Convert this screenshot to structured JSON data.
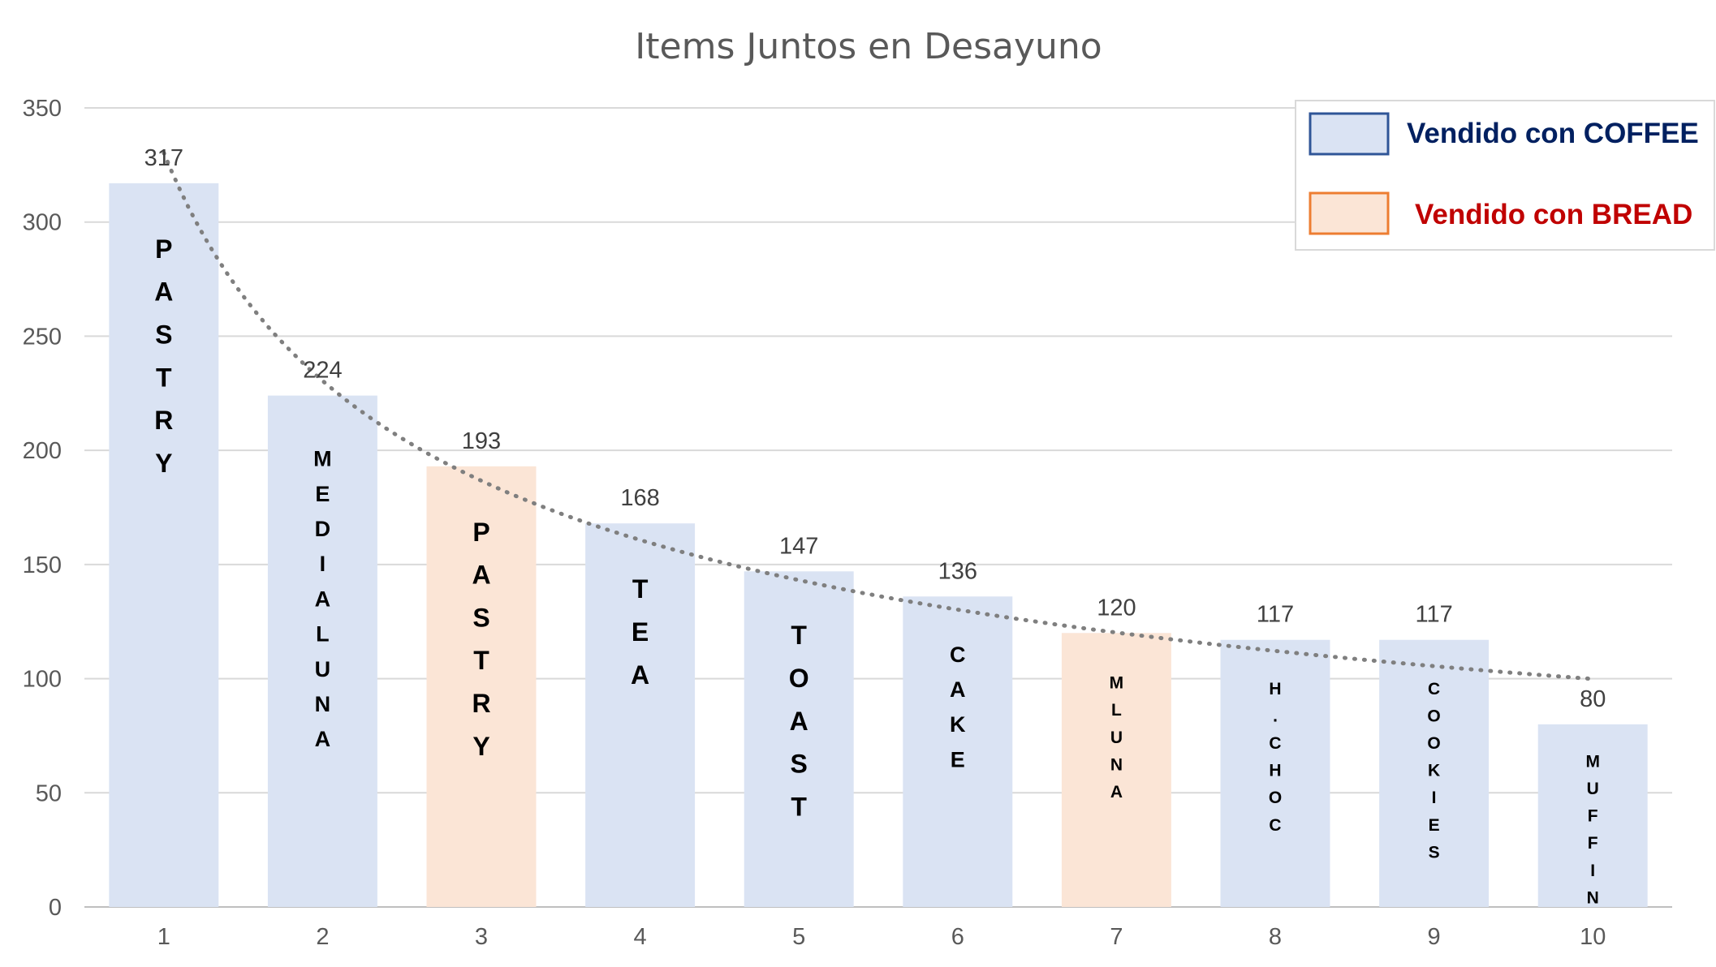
{
  "chart_data": {
    "type": "bar",
    "title": "Items Juntos en Desayuno",
    "xlabel": "",
    "ylabel": "",
    "ylim": [
      0,
      350
    ],
    "yticks": [
      "0",
      "50",
      "100",
      "150",
      "200",
      "250",
      "300",
      "350"
    ],
    "grid": true,
    "legend_position": "top-right",
    "categories": [
      "1",
      "2",
      "3",
      "4",
      "5",
      "6",
      "7",
      "8",
      "9",
      "10"
    ],
    "values": [
      317,
      224,
      193,
      168,
      147,
      136,
      120,
      117,
      117,
      80
    ],
    "data_labels": [
      "317",
      "224",
      "193",
      "168",
      "147",
      "136",
      "120",
      "117",
      "117",
      "80"
    ],
    "bar_labels": [
      "PASTRY",
      "MEDIALUNA",
      "PASTRY",
      "TEA",
      "TOAST",
      "CAKE",
      "MLUNA",
      "H.CHOC",
      "COOKIES",
      "MUFFIN"
    ],
    "bar_groups": [
      "coffee",
      "coffee",
      "bread",
      "coffee",
      "coffee",
      "coffee",
      "bread",
      "coffee",
      "coffee",
      "coffee"
    ],
    "trendline": {
      "type": "power",
      "style": "dotted",
      "color": "#7f7f7f"
    },
    "legend": [
      {
        "key": "coffee",
        "label": "Vendido con COFFEE",
        "fill": "#dae3f3",
        "border": "#2f5597",
        "text_color": "#002060"
      },
      {
        "key": "bread",
        "label": "Vendido con BREAD",
        "fill": "#fbe5d6",
        "border": "#ed7d31",
        "text_color": "#c00000"
      }
    ],
    "colors": {
      "coffee": "#dae3f3",
      "bread": "#fbe5d6",
      "grid": "#d9d9d9",
      "axis": "#bfbfbf"
    }
  }
}
